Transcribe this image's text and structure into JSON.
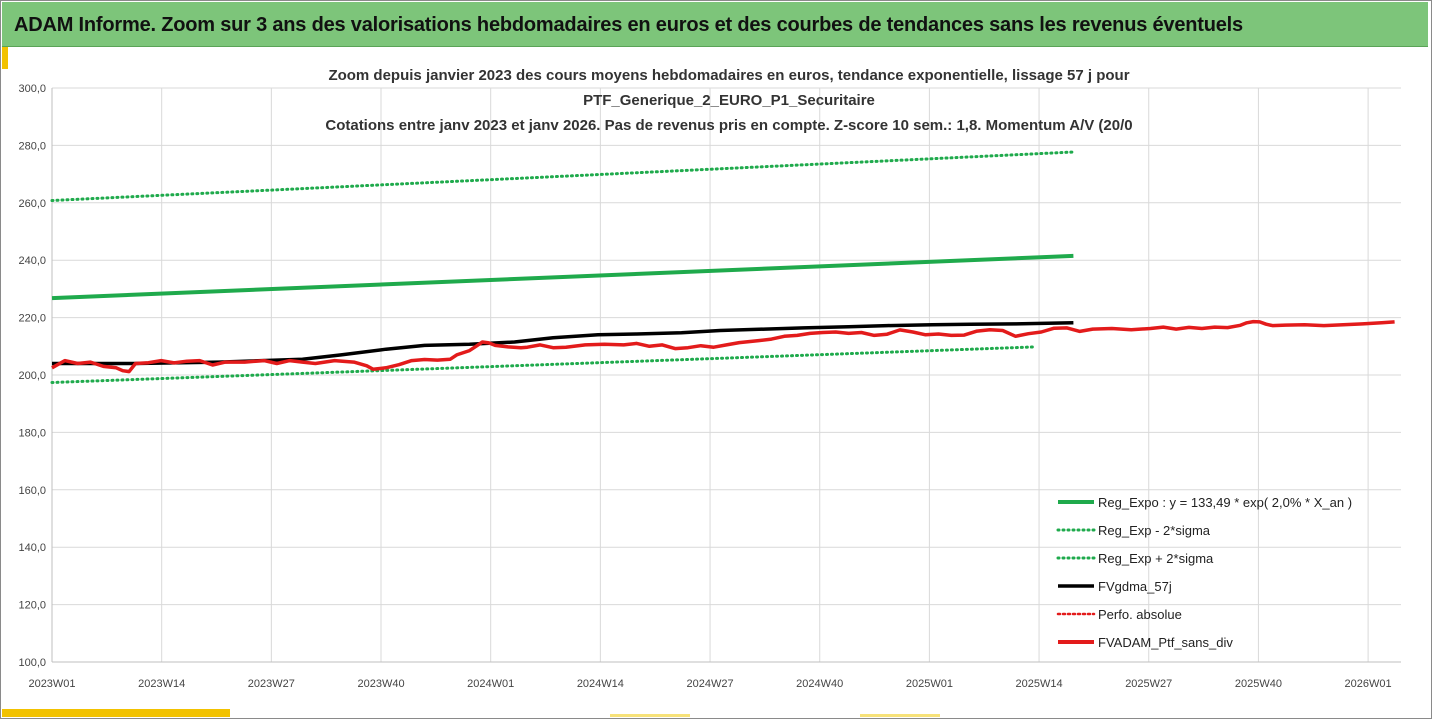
{
  "header": {
    "title": "ADAM Informe. Zoom sur 3 ans des valorisations hebdomadaires en euros et des courbes de tendances sans les revenus éventuels"
  },
  "chart_data": {
    "type": "line",
    "title_lines": [
      "Zoom depuis janvier 2023 des cours moyens hebdomadaires  en euros, tendance exponentielle, lissage 57 j pour",
      "PTF_Generique_2_EURO_P1_Securitaire",
      "Cotations entre janv 2023 et janv 2026. Pas de revenus pris en compte. Z-score 10 sem.: 1,8. Momentum A/V (20/0"
    ],
    "ylim": [
      100,
      300
    ],
    "y_ticks": [
      "100,0",
      "120,0",
      "140,0",
      "160,0",
      "180,0",
      "200,0",
      "220,0",
      "240,0",
      "260,0",
      "280,0",
      "300,0"
    ],
    "x_ticks": [
      "2023W01",
      "2023W14",
      "2023W27",
      "2023W40",
      "2024W01",
      "2024W14",
      "2024W27",
      "2024W40",
      "2025W01",
      "2025W14",
      "2025W27",
      "2025W40",
      "2026W01"
    ],
    "n_weeks": 160,
    "colors": {
      "reg": "#1faa4c",
      "smooth": "#000000",
      "perf": "#e31b1b",
      "fv": "#e31b1b"
    },
    "legend": [
      "Reg_Expo : y = 133,49 * exp( 2,0% *  X_an )",
      "Reg_Exp - 2*sigma",
      "Reg_Exp + 2*sigma",
      "FVgdma_57j",
      "Perfo. absolue",
      "FVADAM_Ptf_sans_div"
    ],
    "series": [
      {
        "name": "Reg_Expo",
        "style": "solid",
        "points": [
          [
            0,
            226.8
          ],
          [
            159,
            241.5
          ]
        ]
      },
      {
        "name": "Reg_Exp - 2*sigma",
        "style": "dotted",
        "points": [
          [
            0,
            197.4
          ],
          [
            153,
            209.8
          ]
        ]
      },
      {
        "name": "Reg_Exp + 2*sigma",
        "style": "dotted",
        "points": [
          [
            0,
            260.8
          ],
          [
            159,
            277.7
          ]
        ]
      },
      {
        "name": "FVgdma_57j",
        "style": "solid",
        "points": [
          [
            0,
            204
          ],
          [
            13,
            204
          ],
          [
            26,
            204.5
          ],
          [
            39,
            205.5
          ],
          [
            45,
            207
          ],
          [
            52,
            209
          ],
          [
            58,
            210.3
          ],
          [
            65,
            210.7
          ],
          [
            72,
            211.5
          ],
          [
            78,
            213
          ],
          [
            85,
            214
          ],
          [
            91,
            214.3
          ],
          [
            98,
            214.7
          ],
          [
            104,
            215.5
          ],
          [
            111,
            216
          ],
          [
            117,
            216.4
          ],
          [
            124,
            216.8
          ],
          [
            130,
            217.2
          ],
          [
            137,
            217.5
          ],
          [
            143,
            217.7
          ],
          [
            150,
            217.8
          ],
          [
            159,
            218.2
          ]
        ]
      },
      {
        "name": "FVADAM_Ptf_sans_div",
        "style": "solid",
        "points": [
          [
            0,
            202.5
          ],
          [
            2,
            205
          ],
          [
            4,
            204
          ],
          [
            6,
            204.5
          ],
          [
            8,
            203
          ],
          [
            10,
            202.5
          ],
          [
            11,
            201.5
          ],
          [
            12,
            201.2
          ],
          [
            13,
            204
          ],
          [
            15,
            204.3
          ],
          [
            17,
            205
          ],
          [
            19,
            204.2
          ],
          [
            21,
            204.8
          ],
          [
            23,
            205
          ],
          [
            25,
            203.5
          ],
          [
            27,
            204.5
          ],
          [
            30,
            204.5
          ],
          [
            33,
            205
          ],
          [
            35,
            204
          ],
          [
            37,
            205
          ],
          [
            39,
            204.5
          ],
          [
            41,
            204
          ],
          [
            44,
            205
          ],
          [
            47,
            204.5
          ],
          [
            49,
            203.2
          ],
          [
            50,
            202
          ],
          [
            52,
            202.5
          ],
          [
            54,
            203.6
          ],
          [
            56,
            205
          ],
          [
            58,
            205.4
          ],
          [
            60,
            205.2
          ],
          [
            62,
            205.5
          ],
          [
            63,
            207
          ],
          [
            65,
            208.5
          ],
          [
            66,
            210
          ],
          [
            67,
            211.5
          ],
          [
            68,
            211.2
          ],
          [
            69,
            210.3
          ],
          [
            71,
            209.8
          ],
          [
            73,
            209.5
          ],
          [
            74,
            209.7
          ],
          [
            76,
            210.5
          ],
          [
            78,
            209.5
          ],
          [
            80,
            209.7
          ],
          [
            83,
            210.5
          ],
          [
            86,
            210.7
          ],
          [
            89,
            210.5
          ],
          [
            91,
            211
          ],
          [
            93,
            210
          ],
          [
            95,
            210.5
          ],
          [
            97,
            209.2
          ],
          [
            99,
            209.5
          ],
          [
            101,
            210.2
          ],
          [
            103,
            209.7
          ],
          [
            105,
            210.5
          ],
          [
            107,
            211.3
          ],
          [
            110,
            212
          ],
          [
            112,
            212.5
          ],
          [
            114,
            213.5
          ],
          [
            116,
            213.8
          ],
          [
            118,
            214.5
          ],
          [
            120,
            214.8
          ],
          [
            122,
            215
          ],
          [
            124,
            214.5
          ],
          [
            126,
            214.8
          ],
          [
            128,
            213.8
          ],
          [
            130,
            214.2
          ],
          [
            132,
            215.7
          ],
          [
            134,
            215
          ],
          [
            136,
            214
          ],
          [
            138,
            214.3
          ],
          [
            140,
            213.8
          ],
          [
            142,
            213.9
          ],
          [
            144,
            215.3
          ],
          [
            146,
            215.8
          ],
          [
            148,
            215.5
          ],
          [
            150,
            213.5
          ],
          [
            152,
            214.4
          ],
          [
            154,
            215
          ],
          [
            156,
            216.3
          ],
          [
            158,
            216.4
          ],
          [
            160,
            215.2
          ],
          [
            162,
            216
          ],
          [
            165,
            216.2
          ],
          [
            168,
            215.8
          ],
          [
            171,
            216.2
          ],
          [
            173,
            216.7
          ],
          [
            175,
            216
          ],
          [
            177,
            216.6
          ],
          [
            179,
            216.2
          ],
          [
            181,
            216.7
          ],
          [
            183,
            216.5
          ],
          [
            185,
            217.3
          ],
          [
            186,
            218.2
          ],
          [
            187,
            218.6
          ],
          [
            188,
            218.5
          ],
          [
            189,
            217.7
          ],
          [
            190,
            217.2
          ],
          [
            192,
            217.4
          ],
          [
            195,
            217.5
          ],
          [
            198,
            217.2
          ],
          [
            201,
            217.5
          ],
          [
            204,
            217.8
          ],
          [
            207,
            218.2
          ],
          [
            209,
            218.5
          ]
        ]
      }
    ]
  }
}
